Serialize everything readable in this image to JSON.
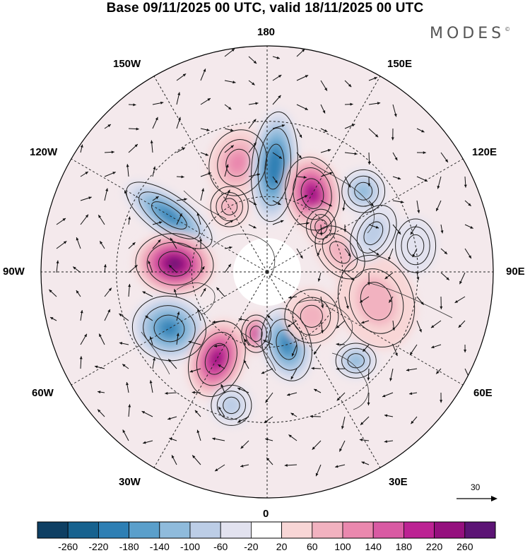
{
  "title": "Base 09/11/2025 00 UTC, valid 18/11/2025 00 UTC",
  "brand": "MODES",
  "brand_mark": "©",
  "longitude_labels": {
    "top": "180",
    "bottom": "0",
    "left": "90W",
    "right": "90E",
    "upper_left_150": "150W",
    "upper_left_120": "120W",
    "lower_left_60": "60W",
    "lower_left_30": "30W",
    "upper_right_150": "150E",
    "upper_right_120": "120E",
    "lower_right_60": "60E",
    "lower_right_30": "30E"
  },
  "reference_vector": {
    "label": "30",
    "icon": "arrow-right-icon"
  },
  "colorbar": {
    "ticks": [
      "-260",
      "-220",
      "-180",
      "-140",
      "-100",
      "-60",
      "-20",
      "20",
      "60",
      "100",
      "140",
      "180",
      "220",
      "260"
    ],
    "colors": [
      "#0e3f63",
      "#17628f",
      "#2e7fb4",
      "#5a9fcb",
      "#8fbbdc",
      "#bccde6",
      "#e2e2ef",
      "#ffffff",
      "#f8d6d6",
      "#f2b2c0",
      "#ea88ae",
      "#d95aa3",
      "#bc2293",
      "#95107e",
      "#5c1475"
    ]
  },
  "anomalies": [
    {
      "lon": 195,
      "lat": 45,
      "value": 120,
      "rx": 42,
      "ry": 50,
      "rot": 20,
      "name": "anomaly-high-north-pacific"
    },
    {
      "lon": 176,
      "lat": 48,
      "value": -220,
      "rx": 34,
      "ry": 82,
      "rot": 5,
      "name": "anomaly-low-aleutian"
    },
    {
      "lon": 150,
      "lat": 54,
      "value": 250,
      "rx": 40,
      "ry": 55,
      "rot": -10,
      "name": "anomaly-high-kamchatka"
    },
    {
      "lon": 240,
      "lat": 45,
      "value": -200,
      "rx": 30,
      "ry": 75,
      "rot": -55,
      "name": "anomaly-low-west-canada"
    },
    {
      "lon": 265,
      "lat": 53,
      "value": 260,
      "rx": 58,
      "ry": 45,
      "rot": 5,
      "name": "anomaly-high-hudson"
    },
    {
      "lon": 300,
      "lat": 45,
      "value": -210,
      "rx": 55,
      "ry": 48,
      "rot": 10,
      "name": "anomaly-low-labrador"
    },
    {
      "lon": 330,
      "lat": 50,
      "value": 250,
      "rx": 40,
      "ry": 58,
      "rot": 20,
      "name": "anomaly-high-north-atlantic"
    },
    {
      "lon": 350,
      "lat": 65,
      "value": 180,
      "rx": 22,
      "ry": 28,
      "rot": 0,
      "name": "anomaly-high-iceland"
    },
    {
      "lon": 15,
      "lat": 60,
      "value": -200,
      "rx": 36,
      "ry": 55,
      "rot": -15,
      "name": "anomaly-low-scandinavia"
    },
    {
      "lon": 345,
      "lat": 35,
      "value": -80,
      "rx": 30,
      "ry": 30,
      "rot": 0,
      "name": "anomaly-low-azores"
    },
    {
      "lon": 45,
      "lat": 40,
      "value": -120,
      "rx": 30,
      "ry": 26,
      "rot": 0,
      "name": "anomaly-low-caspian"
    },
    {
      "lon": 75,
      "lat": 45,
      "value": 80,
      "rx": 55,
      "ry": 70,
      "rot": -20,
      "name": "anomaly-high-central-asia"
    },
    {
      "lon": 45,
      "lat": 65,
      "value": 60,
      "rx": 40,
      "ry": 40,
      "rot": 0,
      "name": "anomaly-high-barents"
    },
    {
      "lon": 105,
      "lat": 60,
      "value": 90,
      "rx": 30,
      "ry": 45,
      "rot": -40,
      "name": "anomaly-high-siberia"
    },
    {
      "lon": 130,
      "lat": 40,
      "value": -120,
      "rx": 32,
      "ry": 32,
      "rot": 0,
      "name": "anomaly-low-japan"
    },
    {
      "lon": 110,
      "lat": 45,
      "value": -80,
      "rx": 30,
      "ry": 45,
      "rot": 30,
      "name": "anomaly-low-mongolia"
    },
    {
      "lon": 130,
      "lat": 62,
      "value": 110,
      "rx": 22,
      "ry": 26,
      "rot": 0,
      "name": "anomaly-high-yakutia"
    },
    {
      "lon": 210,
      "lat": 60,
      "value": 60,
      "rx": 28,
      "ry": 30,
      "rot": 0,
      "name": "anomaly-high-alaska"
    },
    {
      "lon": 100,
      "lat": 30,
      "value": -60,
      "rx": 30,
      "ry": 40,
      "rot": 0,
      "name": "anomaly-low-tibet"
    }
  ]
}
